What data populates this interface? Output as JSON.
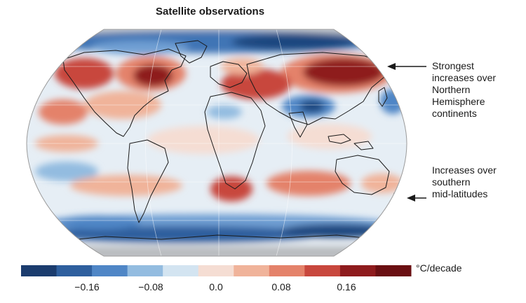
{
  "title": "Satellite observations",
  "annotations": {
    "northern": [
      "Strongest",
      "increases over",
      "Northern",
      "Hemisphere",
      "continents"
    ],
    "southern": [
      "Increases over",
      "southern",
      "mid-latitudes"
    ]
  },
  "colorbar": {
    "unit": "°C/decade",
    "ticks": [
      "−0.16",
      "−0.08",
      "0.0",
      "0.08",
      "0.16"
    ],
    "colors": [
      "#1b3c6e",
      "#2e5f9e",
      "#4f86c6",
      "#93bce0",
      "#d3e4f1",
      "#f5ddd3",
      "#f0b39a",
      "#e4826a",
      "#c8473d",
      "#8e1b1d",
      "#6a0f12"
    ]
  }
}
